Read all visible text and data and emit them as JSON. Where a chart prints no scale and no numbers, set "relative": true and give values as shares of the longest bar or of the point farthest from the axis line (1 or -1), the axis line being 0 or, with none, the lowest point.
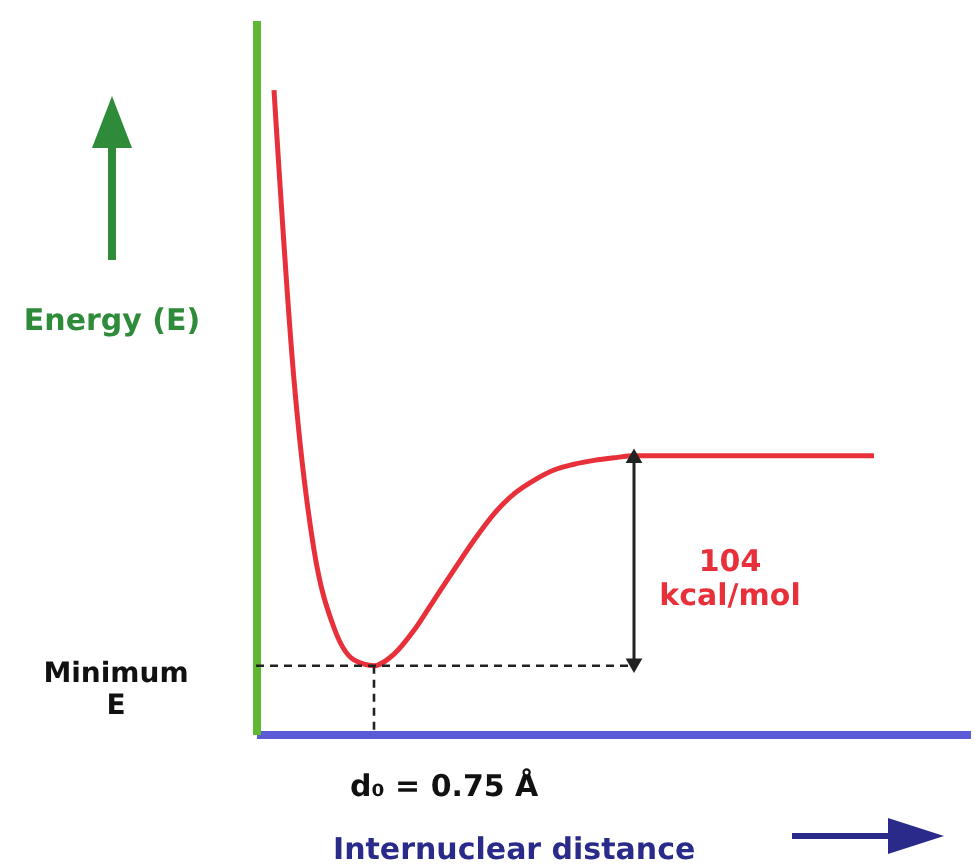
{
  "chart_data": {
    "type": "line",
    "relative": true,
    "xlabel": "Internuclear distance",
    "ylabel": "Energy (E)",
    "categories": [
      null,
      null,
      null,
      null,
      null,
      null,
      null,
      null,
      null,
      null,
      null,
      null,
      null,
      null,
      null,
      null,
      null,
      null,
      null,
      null,
      null,
      null,
      null,
      null,
      null,
      null,
      null,
      null,
      null,
      null,
      null
    ],
    "series": [
      {
        "color": "#e8303a",
        "values": [
          1.0,
          0.55,
          0.286,
          0.165,
          0.115,
          0.106,
          0.124,
          0.161,
          0.208,
          0.255,
          0.301,
          0.342,
          0.373,
          0.394,
          0.41,
          0.419,
          0.425,
          0.429,
          0.432,
          0.432,
          0.432,
          0.432,
          0.432,
          0.432,
          0.432,
          0.432,
          0.432,
          0.432,
          0.432,
          0.432,
          0.432
        ]
      }
    ],
    "ref_lines": [
      {
        "axis": "y",
        "value": 0.106,
        "label": "Minimum E",
        "line_style": "dashed"
      }
    ],
    "annotations": [
      "104 kcal/mol",
      "d₀ = 0.75 Å"
    ],
    "grid": false,
    "marker": "none",
    "line_style": "solid"
  }
}
